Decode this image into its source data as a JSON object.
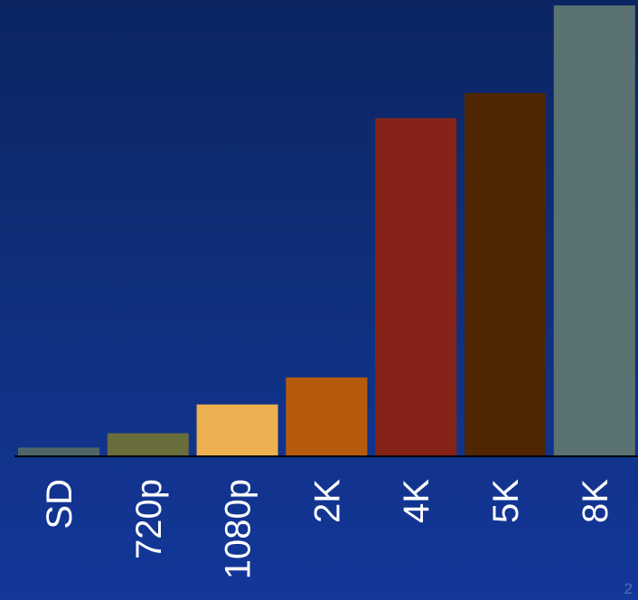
{
  "chart_data": {
    "type": "bar",
    "categories": [
      "SD",
      "720p",
      "1080p",
      "2K",
      "4K",
      "5K",
      "8K"
    ],
    "values": [
      0.35,
      0.92,
      2.07,
      3.15,
      13.5,
      14.5,
      18.0
    ],
    "colors": [
      "#4f6669",
      "#6a6d3c",
      "#edb050",
      "#b85a0c",
      "#852318",
      "#4f2600",
      "#5a7272"
    ],
    "ylim": [
      0,
      18
    ],
    "title": "",
    "xlabel": "",
    "ylabel": "",
    "grid": false,
    "legend": "none"
  },
  "page_number": "2"
}
